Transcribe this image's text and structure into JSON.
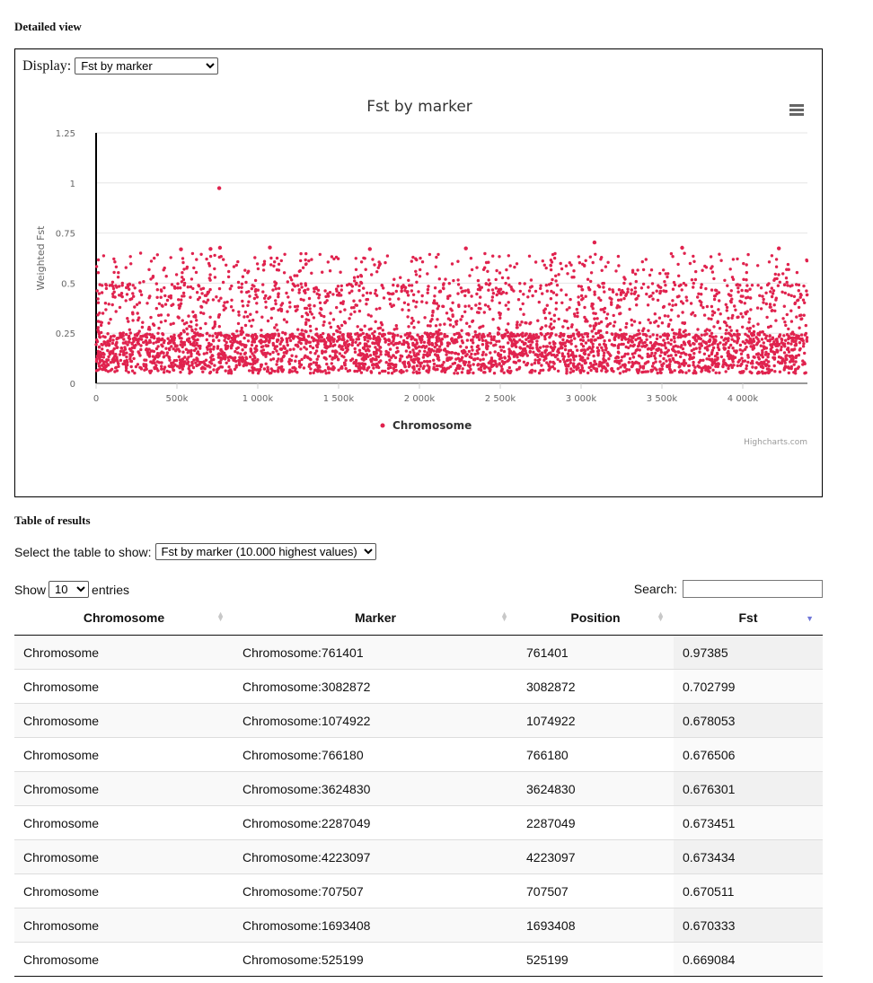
{
  "page": {
    "detail_title": "Detailed view",
    "table_title": "Table of results"
  },
  "display": {
    "label": "Display:",
    "selected": "Fst by marker"
  },
  "chart_data": {
    "type": "scatter",
    "title": "Fst by marker",
    "ylabel": "Weighted Fst",
    "xlabel": "",
    "xlim": [
      0,
      4400000
    ],
    "ylim": [
      0,
      1.25
    ],
    "x_ticks": [
      0,
      500000,
      1000000,
      1500000,
      2000000,
      2500000,
      3000000,
      3500000,
      4000000
    ],
    "x_tick_labels": [
      "0",
      "500k",
      "1 000k",
      "1 500k",
      "2 000k",
      "2 500k",
      "3 000k",
      "3 500k",
      "4 000k"
    ],
    "y_ticks": [
      0,
      0.25,
      0.5,
      0.75,
      1,
      1.25
    ],
    "y_tick_labels": [
      "0",
      "0.25",
      "0.5",
      "0.75",
      "1",
      "1.25"
    ],
    "grid": true,
    "legend_position": "bottom-center",
    "credits": "Highcharts.com",
    "series": [
      {
        "name": "Chromosome",
        "color": "#e0234e",
        "distribution": "thousands of markers; Fst mostly between 0.05 and 0.65",
        "highlighted_points": [
          {
            "x": 761401,
            "y": 0.97385
          },
          {
            "x": 3082872,
            "y": 0.702799
          },
          {
            "x": 1074922,
            "y": 0.678053
          },
          {
            "x": 766180,
            "y": 0.676506
          },
          {
            "x": 3624830,
            "y": 0.676301
          },
          {
            "x": 2287049,
            "y": 0.673451
          },
          {
            "x": 4223097,
            "y": 0.673434
          },
          {
            "x": 707507,
            "y": 0.670511
          },
          {
            "x": 1693408,
            "y": 0.670333
          },
          {
            "x": 525199,
            "y": 0.669084
          }
        ]
      }
    ]
  },
  "table_select": {
    "label": "Select the table to show:",
    "selected": "Fst by marker (10.000 highest values)"
  },
  "length": {
    "show_label": "Show",
    "selected": "10",
    "entries_label": "entries"
  },
  "search": {
    "label": "Search:",
    "value": ""
  },
  "table": {
    "columns": [
      "Chromosome",
      "Marker",
      "Position",
      "Fst"
    ],
    "rows": [
      [
        "Chromosome",
        "Chromosome:761401",
        "761401",
        "0.97385"
      ],
      [
        "Chromosome",
        "Chromosome:3082872",
        "3082872",
        "0.702799"
      ],
      [
        "Chromosome",
        "Chromosome:1074922",
        "1074922",
        "0.678053"
      ],
      [
        "Chromosome",
        "Chromosome:766180",
        "766180",
        "0.676506"
      ],
      [
        "Chromosome",
        "Chromosome:3624830",
        "3624830",
        "0.676301"
      ],
      [
        "Chromosome",
        "Chromosome:2287049",
        "2287049",
        "0.673451"
      ],
      [
        "Chromosome",
        "Chromosome:4223097",
        "4223097",
        "0.673434"
      ],
      [
        "Chromosome",
        "Chromosome:707507",
        "707507",
        "0.670511"
      ],
      [
        "Chromosome",
        "Chromosome:1693408",
        "1693408",
        "0.670333"
      ],
      [
        "Chromosome",
        "Chromosome:525199",
        "525199",
        "0.669084"
      ]
    ]
  }
}
